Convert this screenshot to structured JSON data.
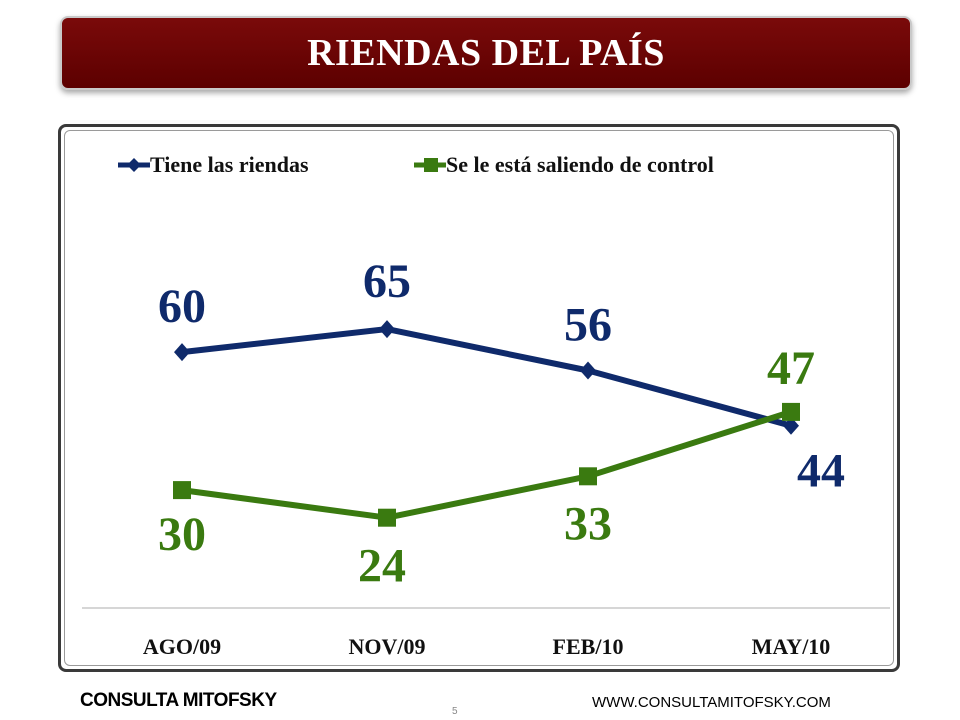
{
  "header": {
    "title": "RIENDAS DEL PAÍS"
  },
  "chart_data": {
    "type": "line",
    "categories": [
      "AGO/09",
      "NOV/09",
      "FEB/10",
      "MAY/10"
    ],
    "series": [
      {
        "name": "Tiene las riendas",
        "values": [
          60,
          65,
          56,
          44
        ],
        "color": "#0f2a6b",
        "marker": "diamond"
      },
      {
        "name": "Se le está saliendo de control",
        "values": [
          30,
          24,
          33,
          47
        ],
        "color": "#3a7a10",
        "marker": "square"
      }
    ],
    "legend": "top",
    "grid": false,
    "ylim": [
      0,
      100
    ]
  },
  "footer": {
    "brand": "CONSULTA MITOFSKY",
    "page": "5",
    "website": "WWW.CONSULTAMITOFSKY.COM"
  }
}
